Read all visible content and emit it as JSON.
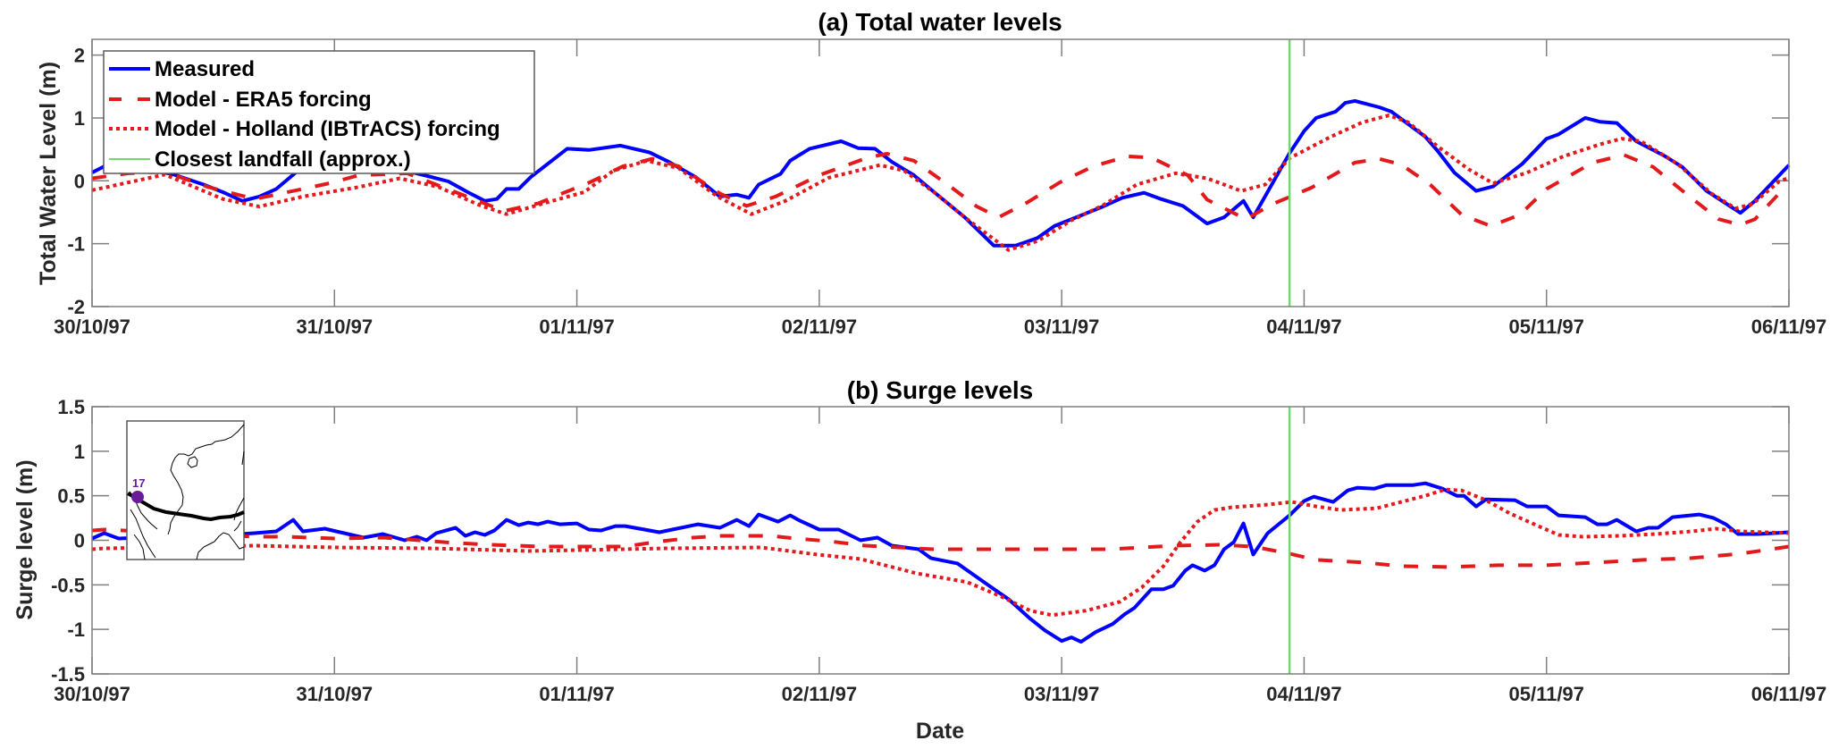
{
  "chart_data": [
    {
      "type": "line",
      "title": "(a) Total water levels",
      "xlabel": "",
      "ylabel": "Total Water Level (m)",
      "x_unit": "days since 30/10/97 00:00",
      "xlim": [
        0,
        7
      ],
      "ylim": [
        -2,
        2.25
      ],
      "yticks": [
        -2,
        -1,
        0,
        1,
        2
      ],
      "ytick_labels": [
        "-2",
        "-1",
        "0",
        "1",
        "2"
      ],
      "xticks": [
        0,
        1,
        2,
        3,
        4,
        5,
        6,
        7
      ],
      "xtick_labels": [
        "30/10/97",
        "31/10/97",
        "01/11/97",
        "02/11/97",
        "03/11/97",
        "04/11/97",
        "05/11/97",
        "06/11/97"
      ],
      "grid": false,
      "legend": {
        "placement": "top-left",
        "entries": [
          {
            "label": "Measured",
            "style": "solid",
            "color": "#0000ff"
          },
          {
            "label": "Model - ERA5 forcing",
            "style": "dashed",
            "color": "#e31a1c"
          },
          {
            "label": "Model - Holland (IBTrACS) forcing",
            "style": "dotted",
            "color": "#e31a1c"
          },
          {
            "label": "Closest landfall (approx.)",
            "style": "solid-thin",
            "color": "#6fd86f"
          }
        ]
      },
      "vline": {
        "label": "Closest landfall (approx.)",
        "x": 4.94,
        "color": "#6fd86f"
      },
      "series": [
        {
          "name": "Measured",
          "style": "solid",
          "color": "#0000ff",
          "x": [
            0,
            0.05,
            0.15,
            0.33,
            0.46,
            0.54,
            0.62,
            0.69,
            0.76,
            0.84,
            0.95,
            1.1,
            1.25,
            1.37,
            1.47,
            1.55,
            1.62,
            1.67,
            1.71,
            1.76,
            1.81,
            1.88,
            1.96,
            2.05,
            2.18,
            2.3,
            2.38,
            2.49,
            2.59,
            2.66,
            2.71,
            2.75,
            2.84,
            2.88,
            2.96,
            3.09,
            3.16,
            3.23,
            3.3,
            3.39,
            3.48,
            3.6,
            3.72,
            3.81,
            3.9,
            3.97,
            4.08,
            4.17,
            4.25,
            4.34,
            4.41,
            4.5,
            4.6,
            4.67,
            4.75,
            4.79,
            4.94,
            5.0,
            5.05,
            5.13,
            5.17,
            5.21,
            5.31,
            5.36,
            5.5,
            5.55,
            5.62,
            5.71,
            5.78,
            5.9,
            6.0,
            6.05,
            6.16,
            6.22,
            6.29,
            6.37,
            6.49,
            6.56,
            6.66,
            6.8,
            6.86,
            7.0
          ],
          "y": [
            0.13,
            0.23,
            0.22,
            0.11,
            -0.06,
            -0.18,
            -0.32,
            -0.25,
            -0.13,
            0.13,
            0.26,
            0.24,
            0.2,
            0.09,
            -0.01,
            -0.18,
            -0.32,
            -0.29,
            -0.13,
            -0.13,
            0.06,
            0.27,
            0.51,
            0.49,
            0.56,
            0.45,
            0.3,
            0.06,
            -0.25,
            -0.22,
            -0.27,
            -0.06,
            0.11,
            0.32,
            0.51,
            0.63,
            0.52,
            0.51,
            0.3,
            0.09,
            -0.2,
            -0.58,
            -1.03,
            -1.03,
            -0.91,
            -0.72,
            -0.55,
            -0.41,
            -0.27,
            -0.19,
            -0.29,
            -0.4,
            -0.68,
            -0.58,
            -0.32,
            -0.58,
            0.44,
            0.79,
            1.0,
            1.1,
            1.24,
            1.27,
            1.17,
            1.1,
            0.7,
            0.48,
            0.13,
            -0.16,
            -0.09,
            0.27,
            0.67,
            0.74,
            1.0,
            0.94,
            0.92,
            0.63,
            0.39,
            0.22,
            -0.16,
            -0.51,
            -0.32,
            0.25
          ]
        },
        {
          "name": "Model - ERA5 forcing",
          "style": "dashed",
          "color": "#e31a1c",
          "x": [
            0,
            0.15,
            0.3,
            0.48,
            0.67,
            0.87,
            0.99,
            1.1,
            1.3,
            1.5,
            1.7,
            1.84,
            1.94,
            2.05,
            2.19,
            2.31,
            2.42,
            2.59,
            2.7,
            2.82,
            3.0,
            3.2,
            3.28,
            3.39,
            3.53,
            3.65,
            3.74,
            3.86,
            3.99,
            4.13,
            4.27,
            4.37,
            4.52,
            4.6,
            4.76,
            4.87,
            5.03,
            5.21,
            5.31,
            5.4,
            5.52,
            5.65,
            5.77,
            5.89,
            6.0,
            6.19,
            6.32,
            6.44,
            6.59,
            6.71,
            6.8,
            6.86,
            6.96,
            7.0
          ],
          "y": [
            0.04,
            0.12,
            0.14,
            -0.1,
            -0.29,
            -0.13,
            -0.03,
            0.09,
            0.12,
            -0.18,
            -0.48,
            -0.36,
            -0.2,
            -0.03,
            0.23,
            0.35,
            0.23,
            -0.2,
            -0.4,
            -0.25,
            0.09,
            0.37,
            0.43,
            0.32,
            -0.06,
            -0.41,
            -0.58,
            -0.34,
            -0.03,
            0.23,
            0.39,
            0.37,
            0.09,
            -0.3,
            -0.61,
            -0.37,
            -0.11,
            0.29,
            0.35,
            0.26,
            -0.06,
            -0.54,
            -0.72,
            -0.54,
            -0.13,
            0.29,
            0.41,
            0.22,
            -0.25,
            -0.61,
            -0.7,
            -0.61,
            -0.2,
            -0.1
          ]
        },
        {
          "name": "Model - Holland (IBTrACS) forcing",
          "style": "dotted",
          "color": "#e31a1c",
          "x": [
            0,
            0.11,
            0.3,
            0.54,
            0.69,
            0.87,
            1.1,
            1.27,
            1.43,
            1.6,
            1.71,
            1.88,
            2.03,
            2.15,
            2.29,
            2.42,
            2.58,
            2.72,
            2.86,
            3.04,
            3.25,
            3.35,
            3.48,
            3.6,
            3.78,
            3.9,
            4.04,
            4.17,
            4.31,
            4.47,
            4.6,
            4.74,
            4.84,
            4.94,
            5.11,
            5.24,
            5.35,
            5.43,
            5.55,
            5.68,
            5.78,
            5.92,
            6.07,
            6.22,
            6.31,
            6.39,
            6.54,
            6.68,
            6.78,
            6.85,
            6.96,
            7.0
          ],
          "y": [
            -0.15,
            -0.06,
            0.1,
            -0.29,
            -0.41,
            -0.25,
            -0.1,
            0.04,
            -0.1,
            -0.39,
            -0.53,
            -0.34,
            -0.18,
            0.16,
            0.32,
            0.2,
            -0.25,
            -0.53,
            -0.32,
            0.05,
            0.25,
            0.16,
            -0.2,
            -0.58,
            -1.1,
            -0.96,
            -0.63,
            -0.39,
            -0.06,
            0.12,
            0.04,
            -0.16,
            -0.06,
            0.36,
            0.7,
            0.93,
            1.04,
            0.93,
            0.55,
            0.18,
            -0.04,
            0.13,
            0.39,
            0.58,
            0.67,
            0.63,
            0.27,
            -0.2,
            -0.44,
            -0.37,
            -0.01,
            0.05
          ]
        }
      ]
    },
    {
      "type": "line",
      "title": "(b) Surge levels",
      "xlabel": "Date",
      "ylabel": "Surge level (m)",
      "x_unit": "days since 30/10/97 00:00",
      "xlim": [
        0,
        7
      ],
      "ylim": [
        -1.5,
        1.5
      ],
      "yticks": [
        -1.5,
        -1,
        -0.5,
        0,
        0.5,
        1,
        1.5
      ],
      "ytick_labels": [
        "-1.5",
        "-1",
        "-0.5",
        "0",
        "0.5",
        "1",
        "1.5"
      ],
      "xticks": [
        0,
        1,
        2,
        3,
        4,
        5,
        6,
        7
      ],
      "xtick_labels": [
        "30/10/97",
        "31/10/97",
        "01/11/97",
        "02/11/97",
        "03/11/97",
        "04/11/97",
        "05/11/97",
        "06/11/97"
      ],
      "grid": false,
      "vline": {
        "label": "Closest landfall (approx.)",
        "x": 4.94,
        "color": "#6fd86f"
      },
      "inset": {
        "type": "map",
        "station_label": "17",
        "station_color": "#6a1b9a",
        "track_color": "#000000",
        "placement": "top-left"
      },
      "series": [
        {
          "name": "Measured",
          "style": "solid",
          "color": "#0000ff",
          "x": [
            0,
            0.05,
            0.11,
            0.3,
            0.5,
            0.67,
            0.76,
            0.83,
            0.87,
            0.96,
            1.04,
            1.12,
            1.2,
            1.29,
            1.34,
            1.38,
            1.42,
            1.5,
            1.54,
            1.58,
            1.62,
            1.66,
            1.71,
            1.76,
            1.8,
            1.84,
            1.88,
            1.93,
            2.0,
            2.05,
            2.1,
            2.16,
            2.2,
            2.34,
            2.5,
            2.59,
            2.66,
            2.71,
            2.75,
            2.83,
            2.88,
            2.92,
            3.0,
            3.08,
            3.17,
            3.24,
            3.3,
            3.41,
            3.46,
            3.57,
            3.7,
            3.78,
            3.87,
            3.93,
            4.0,
            4.04,
            4.08,
            4.14,
            4.21,
            4.26,
            4.3,
            4.37,
            4.42,
            4.46,
            4.51,
            4.54,
            4.59,
            4.63,
            4.67,
            4.71,
            4.75,
            4.79,
            4.85,
            4.94,
            5.0,
            5.04,
            5.12,
            5.18,
            5.22,
            5.29,
            5.34,
            5.45,
            5.5,
            5.57,
            5.63,
            5.66,
            5.71,
            5.75,
            5.87,
            5.92,
            6.0,
            6.05,
            6.16,
            6.21,
            6.25,
            6.29,
            6.37,
            6.42,
            6.46,
            6.52,
            6.63,
            6.69,
            6.74,
            6.79,
            6.87,
            6.94,
            7.0
          ],
          "y": [
            0.02,
            0.08,
            0.02,
            0.04,
            0.05,
            0.08,
            0.1,
            0.23,
            0.1,
            0.13,
            0.08,
            0.03,
            0.07,
            0.0,
            0.04,
            0.0,
            0.08,
            0.14,
            0.05,
            0.09,
            0.06,
            0.11,
            0.23,
            0.17,
            0.2,
            0.18,
            0.21,
            0.18,
            0.19,
            0.12,
            0.11,
            0.16,
            0.16,
            0.09,
            0.18,
            0.14,
            0.23,
            0.16,
            0.29,
            0.21,
            0.28,
            0.22,
            0.12,
            0.12,
            0.0,
            0.03,
            -0.06,
            -0.1,
            -0.2,
            -0.26,
            -0.51,
            -0.66,
            -0.88,
            -1.01,
            -1.13,
            -1.09,
            -1.14,
            -1.03,
            -0.94,
            -0.83,
            -0.76,
            -0.55,
            -0.55,
            -0.51,
            -0.34,
            -0.28,
            -0.34,
            -0.28,
            -0.1,
            -0.02,
            0.19,
            -0.16,
            0.08,
            0.28,
            0.44,
            0.49,
            0.43,
            0.56,
            0.59,
            0.58,
            0.62,
            0.62,
            0.64,
            0.58,
            0.5,
            0.5,
            0.38,
            0.46,
            0.45,
            0.38,
            0.38,
            0.28,
            0.26,
            0.18,
            0.18,
            0.23,
            0.1,
            0.14,
            0.14,
            0.26,
            0.29,
            0.25,
            0.18,
            0.07,
            0.07,
            0.08,
            0.09
          ]
        },
        {
          "name": "Model - ERA5 forcing",
          "style": "dashed",
          "color": "#e31a1c",
          "x": [
            0,
            0.05,
            0.67,
            0.8,
            1.0,
            1.2,
            1.35,
            1.5,
            1.65,
            1.85,
            2.02,
            2.2,
            2.32,
            2.48,
            2.6,
            2.8,
            2.9,
            3.04,
            3.19,
            3.33,
            3.47,
            3.8,
            4.2,
            4.33,
            4.47,
            4.65,
            4.79,
            4.94,
            5.05,
            5.25,
            5.4,
            5.6,
            5.8,
            6.0,
            6.2,
            6.4,
            6.6,
            6.8,
            7.0
          ],
          "y": [
            0.11,
            0.12,
            0.04,
            0.04,
            0.02,
            0.03,
            0.0,
            -0.03,
            -0.05,
            -0.07,
            -0.07,
            -0.07,
            -0.02,
            0.03,
            0.05,
            0.05,
            0.02,
            -0.01,
            -0.06,
            -0.08,
            -0.1,
            -0.1,
            -0.1,
            -0.08,
            -0.06,
            -0.05,
            -0.07,
            -0.15,
            -0.22,
            -0.25,
            -0.29,
            -0.3,
            -0.28,
            -0.28,
            -0.25,
            -0.22,
            -0.2,
            -0.15,
            -0.07
          ]
        },
        {
          "name": "Model - Holland (IBTrACS) forcing",
          "style": "dotted",
          "color": "#e31a1c",
          "x": [
            0,
            0.05,
            0.67,
            1.0,
            1.4,
            1.8,
            2.0,
            2.37,
            2.76,
            2.99,
            3.17,
            3.4,
            3.61,
            3.75,
            3.87,
            3.96,
            4.1,
            4.24,
            4.33,
            4.42,
            4.49,
            4.56,
            4.63,
            4.7,
            4.85,
            4.95,
            5.05,
            5.15,
            5.3,
            5.4,
            5.5,
            5.58,
            5.65,
            5.75,
            5.85,
            5.95,
            6.05,
            6.15,
            6.3,
            6.45,
            6.6,
            6.7,
            6.8,
            7.0
          ],
          "y": [
            -0.1,
            -0.09,
            -0.06,
            -0.08,
            -0.09,
            -0.12,
            -0.11,
            -0.09,
            -0.08,
            -0.16,
            -0.21,
            -0.37,
            -0.47,
            -0.63,
            -0.79,
            -0.84,
            -0.79,
            -0.69,
            -0.53,
            -0.29,
            -0.02,
            0.21,
            0.34,
            0.37,
            0.4,
            0.43,
            0.38,
            0.34,
            0.36,
            0.43,
            0.5,
            0.57,
            0.56,
            0.45,
            0.3,
            0.18,
            0.06,
            0.04,
            0.05,
            0.07,
            0.1,
            0.13,
            0.1,
            0.08
          ]
        }
      ]
    }
  ]
}
